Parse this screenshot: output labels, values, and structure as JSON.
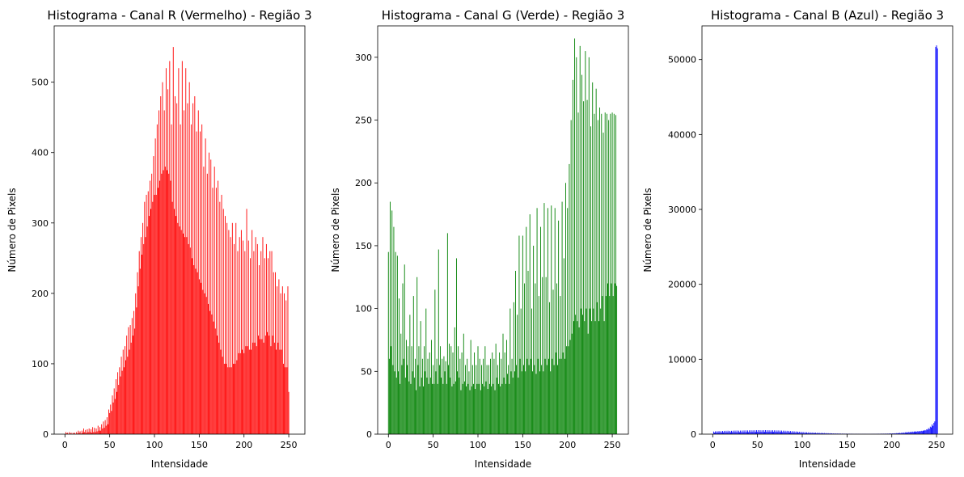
{
  "chart_data": [
    {
      "type": "bar",
      "title": "Histograma - Canal R (Vermelho) - Região 3",
      "xlabel": "Intensidade",
      "ylabel": "Número de Pixels",
      "xlim": [
        -12,
        268
      ],
      "ylim": [
        0,
        580
      ],
      "xticks": [
        0,
        50,
        100,
        150,
        200,
        250
      ],
      "yticks": [
        0,
        100,
        200,
        300,
        400,
        500
      ],
      "grid": false,
      "color": "#ff0000",
      "series": [
        {
          "values": [
            0,
            3,
            1,
            2,
            0,
            3,
            1,
            2,
            0,
            2,
            1,
            2,
            0,
            3,
            1,
            5,
            2,
            4,
            1,
            5,
            2,
            8,
            3,
            6,
            2,
            7,
            3,
            8,
            3,
            7,
            2,
            10,
            3,
            9,
            3,
            8,
            4,
            12,
            5,
            10,
            5,
            14,
            8,
            18,
            9,
            20,
            12,
            24,
            14,
            35,
            30,
            42,
            33,
            55,
            45,
            65,
            50,
            78,
            60,
            88,
            70,
            95,
            82,
            110,
            90,
            120,
            95,
            125,
            105,
            140,
            110,
            152,
            120,
            155,
            130,
            165,
            140,
            175,
            150,
            200,
            180,
            230,
            210,
            260,
            235,
            280,
            255,
            300,
            270,
            330,
            280,
            340,
            295,
            345,
            310,
            360,
            320,
            370,
            330,
            395,
            340,
            420,
            340,
            440,
            350,
            460,
            360,
            480,
            370,
            500,
            375,
            460,
            380,
            520,
            375,
            490,
            370,
            530,
            360,
            440,
            330,
            550,
            320,
            480,
            310,
            470,
            300,
            520,
            295,
            440,
            290,
            530,
            285,
            460,
            280,
            520,
            280,
            470,
            270,
            500,
            265,
            440,
            250,
            470,
            240,
            480,
            235,
            430,
            230,
            460,
            220,
            430,
            215,
            440,
            205,
            380,
            200,
            420,
            195,
            370,
            185,
            400,
            175,
            390,
            170,
            350,
            160,
            380,
            150,
            350,
            140,
            360,
            130,
            330,
            120,
            340,
            110,
            320,
            100,
            310,
            100,
            300,
            95,
            290,
            95,
            280,
            95,
            300,
            100,
            270,
            100,
            300,
            105,
            260,
            115,
            280,
            115,
            290,
            120,
            275,
            115,
            260,
            125,
            320,
            125,
            275,
            120,
            250,
            120,
            290,
            130,
            260,
            130,
            280,
            125,
            270,
            140,
            240,
            135,
            260,
            135,
            280,
            130,
            250,
            140,
            270,
            145,
            250,
            140,
            260,
            125,
            260,
            140,
            230,
            130,
            230,
            120,
            210,
            130,
            220,
            120,
            200,
            120,
            210,
            100,
            200,
            95,
            190,
            95,
            210,
            60
          ]
        }
      ]
    },
    {
      "type": "bar",
      "title": "Histograma - Canal G (Verde) - Região 3",
      "xlabel": "Intensidade",
      "ylabel": "Número de Pixels",
      "xlim": [
        -12,
        268
      ],
      "ylim": [
        0,
        325
      ],
      "xticks": [
        0,
        50,
        100,
        150,
        200,
        250
      ],
      "yticks": [
        0,
        50,
        100,
        150,
        200,
        250,
        300
      ],
      "grid": false,
      "color": "#008000",
      "series": [
        {
          "values": [
            145,
            60,
            185,
            70,
            178,
            55,
            165,
            50,
            145,
            45,
            142,
            50,
            108,
            40,
            80,
            55,
            120,
            60,
            135,
            45,
            75,
            55,
            70,
            42,
            95,
            40,
            70,
            50,
            110,
            45,
            60,
            35,
            125,
            55,
            70,
            38,
            90,
            45,
            60,
            38,
            70,
            50,
            100,
            45,
            60,
            40,
            65,
            45,
            75,
            40,
            55,
            40,
            115,
            50,
            60,
            40,
            147,
            55,
            70,
            45,
            60,
            40,
            62,
            50,
            58,
            40,
            160,
            55,
            72,
            45,
            70,
            38,
            65,
            40,
            85,
            42,
            140,
            50,
            70,
            45,
            60,
            35,
            65,
            40,
            80,
            42,
            55,
            38,
            60,
            40,
            50,
            35,
            75,
            38,
            55,
            40,
            65,
            36,
            55,
            40,
            70,
            40,
            60,
            35,
            55,
            40,
            60,
            38,
            70,
            42,
            55,
            36,
            55,
            40,
            60,
            38,
            65,
            40,
            60,
            35,
            72,
            45,
            55,
            40,
            65,
            38,
            60,
            40,
            80,
            45,
            65,
            40,
            75,
            48,
            55,
            40,
            100,
            50,
            60,
            45,
            105,
            50,
            130,
            55,
            95,
            45,
            158,
            60,
            100,
            50,
            158,
            55,
            120,
            50,
            165,
            60,
            130,
            55,
            175,
            60,
            100,
            50,
            150,
            55,
            120,
            48,
            180,
            60,
            110,
            50,
            165,
            55,
            125,
            50,
            184,
            60,
            125,
            55,
            180,
            60,
            105,
            50,
            182,
            60,
            115,
            55,
            180,
            65,
            120,
            55,
            170,
            60,
            110,
            60,
            185,
            65,
            140,
            60,
            200,
            70,
            180,
            70,
            215,
            75,
            250,
            80,
            282,
            90,
            315,
            95,
            300,
            90,
            256,
            85,
            309,
            100,
            286,
            95,
            265,
            90,
            305,
            100,
            266,
            80,
            300,
            100,
            245,
            90,
            280,
            100,
            255,
            90,
            275,
            105,
            250,
            90,
            260,
            100,
            255,
            110,
            240,
            90,
            256,
            110,
            255,
            120,
            250,
            110,
            255,
            120,
            256,
            110,
            255,
            120,
            254,
            118
          ]
        }
      ]
    },
    {
      "type": "bar",
      "title": "Histograma - Canal B (Azul) - Região 3",
      "xlabel": "Intensidade",
      "ylabel": "Número de Pixels",
      "xlim": [
        -12,
        268
      ],
      "ylim": [
        0,
        54500
      ],
      "xticks": [
        0,
        50,
        100,
        150,
        200,
        250
      ],
      "yticks": [
        0,
        10000,
        20000,
        30000,
        40000,
        50000
      ],
      "grid": false,
      "color": "#0000ff",
      "series": [
        {
          "values": [
            0,
            350,
            200,
            380,
            210,
            400,
            220,
            420,
            230,
            400,
            220,
            430,
            240,
            440,
            230,
            450,
            240,
            460,
            250,
            440,
            240,
            450,
            260,
            470,
            250,
            480,
            260,
            490,
            250,
            470,
            260,
            480,
            270,
            490,
            260,
            500,
            270,
            510,
            280,
            500,
            270,
            510,
            280,
            520,
            290,
            510,
            280,
            520,
            290,
            530,
            300,
            540,
            290,
            530,
            300,
            520,
            290,
            530,
            300,
            540,
            310,
            530,
            300,
            520,
            310,
            510,
            300,
            520,
            310,
            510,
            300,
            500,
            290,
            500,
            290,
            490,
            280,
            480,
            270,
            470,
            260,
            460,
            250,
            450,
            240,
            440,
            230,
            420,
            220,
            400,
            210,
            380,
            200,
            360,
            190,
            340,
            180,
            320,
            170,
            300,
            160,
            280,
            150,
            260,
            140,
            250,
            140,
            240,
            130,
            230,
            130,
            220,
            120,
            210,
            120,
            200,
            110,
            190,
            110,
            180,
            100,
            170,
            100,
            160,
            90,
            150,
            90,
            140,
            80,
            130,
            80,
            120,
            70,
            110,
            70,
            100,
            60,
            100,
            60,
            90,
            60,
            90,
            50,
            80,
            50,
            80,
            50,
            70,
            40,
            70,
            40,
            60,
            40,
            60,
            40,
            60,
            40,
            50,
            30,
            50,
            30,
            50,
            30,
            50,
            30,
            40,
            30,
            40,
            30,
            40,
            30,
            40,
            30,
            40,
            30,
            40,
            30,
            40,
            30,
            50,
            30,
            50,
            40,
            50,
            40,
            60,
            40,
            60,
            40,
            70,
            50,
            70,
            50,
            80,
            50,
            80,
            60,
            90,
            60,
            100,
            70,
            110,
            80,
            120,
            90,
            140,
            100,
            160,
            110,
            180,
            120,
            200,
            140,
            220,
            160,
            250,
            180,
            280,
            200,
            300,
            230,
            320,
            260,
            340,
            280,
            360,
            300,
            380,
            320,
            400,
            350,
            420,
            380,
            450,
            400,
            500,
            450,
            550,
            500,
            650,
            600,
            800,
            700,
            1000,
            900,
            1300,
            1100,
            1500,
            1700,
            51700,
            51900,
            51500
          ]
        }
      ]
    }
  ]
}
